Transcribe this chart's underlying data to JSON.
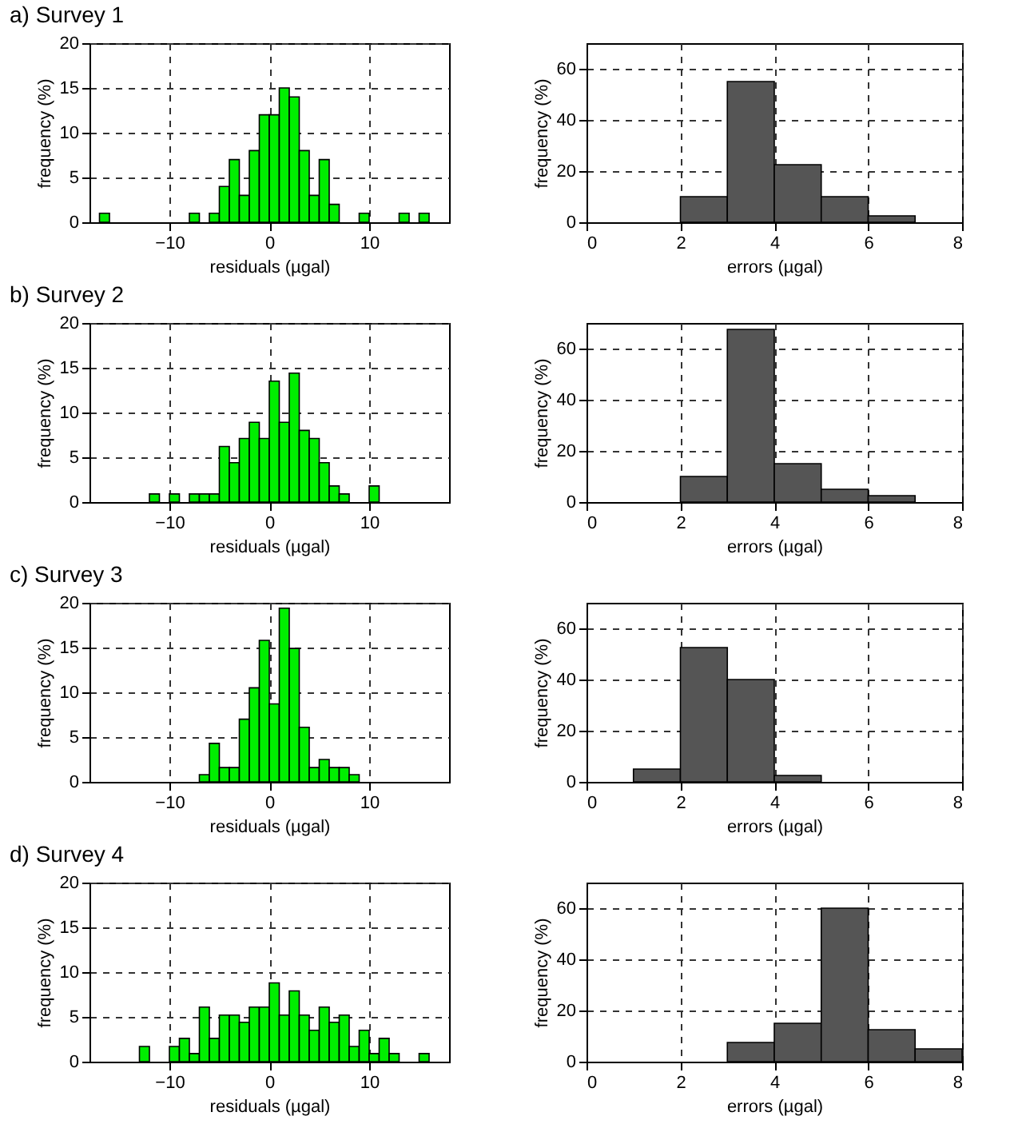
{
  "chart_data": [
    {
      "type": "histogram",
      "title": "a) Survey 1",
      "xlabel": "residuals (µgal)",
      "ylabel": "frequency (%)",
      "color": "#00ee00",
      "bins": [
        -18,
        -17,
        -16,
        -15,
        -14,
        -13,
        -12,
        -11,
        -10,
        -9,
        -8,
        -7,
        -6,
        -5,
        -4,
        -3,
        -2,
        -1,
        0,
        1,
        2,
        3,
        4,
        5,
        6,
        7,
        8,
        9,
        10,
        11,
        12,
        13,
        14,
        15,
        16,
        17,
        18
      ],
      "values": [
        0,
        1,
        0,
        0,
        0,
        0,
        0,
        0,
        0,
        0,
        1,
        0,
        1,
        4,
        7,
        3,
        8,
        12,
        12,
        15,
        14,
        8,
        3,
        7,
        2,
        0,
        0,
        1,
        0,
        0,
        0,
        1,
        0,
        1,
        0,
        0
      ],
      "xlim": [
        -18,
        18
      ],
      "xticks": [
        -10,
        0,
        10
      ],
      "ylim": [
        0,
        20
      ],
      "yticks": [
        0,
        5,
        10,
        15,
        20
      ],
      "grid": true
    },
    {
      "type": "histogram",
      "xlabel": "errors (µgal)",
      "ylabel": "frequency (%)",
      "color": "#555555",
      "bins": [
        0,
        1,
        2,
        3,
        4,
        5,
        6,
        7,
        8
      ],
      "values": [
        0,
        0,
        10,
        55,
        22.5,
        10,
        2.5,
        0
      ],
      "xlim": [
        0,
        8
      ],
      "xticks": [
        0,
        2,
        4,
        6,
        8
      ],
      "ylim": [
        0,
        70
      ],
      "yticks": [
        0,
        20,
        40,
        60
      ],
      "grid": true
    },
    {
      "type": "histogram",
      "title": "b) Survey 2",
      "xlabel": "residuals (µgal)",
      "ylabel": "frequency (%)",
      "color": "#00ee00",
      "bins": [
        -18,
        -17,
        -16,
        -15,
        -14,
        -13,
        -12,
        -11,
        -10,
        -9,
        -8,
        -7,
        -6,
        -5,
        -4,
        -3,
        -2,
        -1,
        0,
        1,
        2,
        3,
        4,
        5,
        6,
        7,
        8,
        9,
        10,
        11,
        12,
        13,
        14,
        15,
        16,
        17,
        18
      ],
      "values": [
        0,
        0,
        0,
        0,
        0,
        0,
        0.9,
        0,
        0.9,
        0,
        0.9,
        0.9,
        0.9,
        6.2,
        4.4,
        7.1,
        8.9,
        7.1,
        13.5,
        8.9,
        14.4,
        8,
        7.1,
        4.4,
        1.8,
        0.9,
        0,
        0,
        1.8,
        0,
        0,
        0,
        0,
        0,
        0,
        0
      ],
      "xlim": [
        -18,
        18
      ],
      "xticks": [
        -10,
        0,
        10
      ],
      "ylim": [
        0,
        20
      ],
      "yticks": [
        0,
        5,
        10,
        15,
        20
      ],
      "grid": true
    },
    {
      "type": "histogram",
      "xlabel": "errors (µgal)",
      "ylabel": "frequency (%)",
      "color": "#555555",
      "bins": [
        0,
        1,
        2,
        3,
        4,
        5,
        6,
        7,
        8
      ],
      "values": [
        0,
        0,
        10,
        67.5,
        15,
        5,
        2.5,
        0
      ],
      "xlim": [
        0,
        8
      ],
      "xticks": [
        0,
        2,
        4,
        6,
        8
      ],
      "ylim": [
        0,
        70
      ],
      "yticks": [
        0,
        20,
        40,
        60
      ],
      "grid": true
    },
    {
      "type": "histogram",
      "title": "c) Survey 3",
      "xlabel": "residuals (µgal)",
      "ylabel": "frequency (%)",
      "color": "#00ee00",
      "bins": [
        -18,
        -17,
        -16,
        -15,
        -14,
        -13,
        -12,
        -11,
        -10,
        -9,
        -8,
        -7,
        -6,
        -5,
        -4,
        -3,
        -2,
        -1,
        0,
        1,
        2,
        3,
        4,
        5,
        6,
        7,
        8,
        9,
        10,
        11,
        12,
        13,
        14,
        15,
        16,
        17,
        18
      ],
      "values": [
        0,
        0,
        0,
        0,
        0,
        0,
        0,
        0,
        0,
        0,
        0,
        0.8,
        4.3,
        1.6,
        1.6,
        7,
        10.5,
        15.8,
        8.7,
        19.4,
        14.9,
        6.1,
        1.6,
        2.5,
        1.6,
        1.6,
        0.8,
        0,
        0,
        0,
        0,
        0,
        0,
        0,
        0,
        0
      ],
      "xlim": [
        -18,
        18
      ],
      "xticks": [
        -10,
        0,
        10
      ],
      "ylim": [
        0,
        20
      ],
      "yticks": [
        0,
        5,
        10,
        15,
        20
      ],
      "grid": true
    },
    {
      "type": "histogram",
      "xlabel": "errors (µgal)",
      "ylabel": "frequency (%)",
      "color": "#555555",
      "bins": [
        0,
        1,
        2,
        3,
        4,
        5,
        6,
        7,
        8
      ],
      "values": [
        0,
        5,
        52.5,
        40,
        2.5,
        0,
        0,
        0
      ],
      "xlim": [
        0,
        8
      ],
      "xticks": [
        0,
        2,
        4,
        6,
        8
      ],
      "ylim": [
        0,
        70
      ],
      "yticks": [
        0,
        20,
        40,
        60
      ],
      "grid": true
    },
    {
      "type": "histogram",
      "title": "d) Survey 4",
      "xlabel": "residuals (µgal)",
      "ylabel": "frequency (%)",
      "color": "#00ee00",
      "bins": [
        -18,
        -17,
        -16,
        -15,
        -14,
        -13,
        -12,
        -11,
        -10,
        -9,
        -8,
        -7,
        -6,
        -5,
        -4,
        -3,
        -2,
        -1,
        0,
        1,
        2,
        3,
        4,
        5,
        6,
        7,
        8,
        9,
        10,
        11,
        12,
        13,
        14,
        15,
        16,
        17,
        18
      ],
      "values": [
        0,
        0,
        0,
        0,
        0,
        1.7,
        0,
        0,
        1.7,
        2.6,
        0.9,
        6.1,
        2.6,
        5.2,
        5.2,
        4.4,
        6.1,
        6.1,
        8.8,
        5.2,
        7.9,
        5.2,
        3.5,
        6.1,
        4.4,
        5.2,
        1.7,
        3.5,
        0.9,
        2.6,
        0.9,
        0,
        0,
        0.9,
        0,
        0
      ],
      "xlim": [
        -18,
        18
      ],
      "xticks": [
        -10,
        0,
        10
      ],
      "ylim": [
        0,
        20
      ],
      "yticks": [
        0,
        5,
        10,
        15,
        20
      ],
      "grid": true
    },
    {
      "type": "histogram",
      "xlabel": "errors (µgal)",
      "ylabel": "frequency (%)",
      "color": "#555555",
      "bins": [
        0,
        1,
        2,
        3,
        4,
        5,
        6,
        7,
        8
      ],
      "values": [
        0,
        0,
        0,
        7.5,
        15,
        60,
        12.5,
        5
      ],
      "xlim": [
        0,
        8
      ],
      "xticks": [
        0,
        2,
        4,
        6,
        8
      ],
      "ylim": [
        0,
        70
      ],
      "yticks": [
        0,
        20,
        40,
        60
      ],
      "grid": true
    }
  ]
}
